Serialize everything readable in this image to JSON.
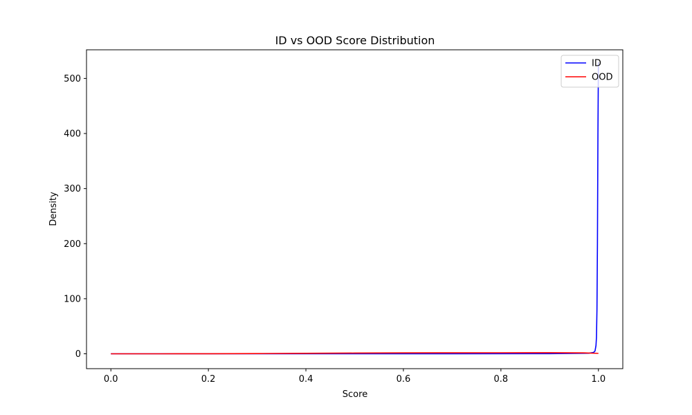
{
  "chart_data": {
    "type": "line",
    "title": "ID vs OOD Score Distribution",
    "xlabel": "Score",
    "ylabel": "Density",
    "xlim": [
      -0.05,
      1.05
    ],
    "ylim": [
      -27,
      552
    ],
    "xticks": [
      0.0,
      0.2,
      0.4,
      0.6,
      0.8,
      1.0
    ],
    "xtick_labels": [
      "0.0",
      "0.2",
      "0.4",
      "0.6",
      "0.8",
      "1.0"
    ],
    "yticks": [
      0,
      100,
      200,
      300,
      400,
      500
    ],
    "ytick_labels": [
      "0",
      "100",
      "200",
      "300",
      "400",
      "500"
    ],
    "grid": false,
    "legend_position": "top-right",
    "series": [
      {
        "name": "ID",
        "color": "#0000ff",
        "x": [
          0.0,
          0.3,
          0.5,
          0.7,
          0.9,
          0.98,
          0.99,
          0.993,
          0.995,
          0.996,
          0.997,
          0.998,
          0.999,
          1.0
        ],
        "y": [
          0,
          0,
          0,
          0,
          0.2,
          1,
          2.5,
          5,
          15,
          30,
          80,
          200,
          400,
          530
        ]
      },
      {
        "name": "OOD",
        "color": "#ff0000",
        "x": [
          0.0,
          0.1,
          0.2,
          0.3,
          0.4,
          0.5,
          0.6,
          0.7,
          0.8,
          0.9,
          0.97,
          1.0
        ],
        "y": [
          0,
          0,
          0.1,
          0.4,
          0.9,
          1.3,
          1.6,
          1.8,
          1.9,
          2.0,
          1.6,
          0.8
        ]
      }
    ]
  }
}
